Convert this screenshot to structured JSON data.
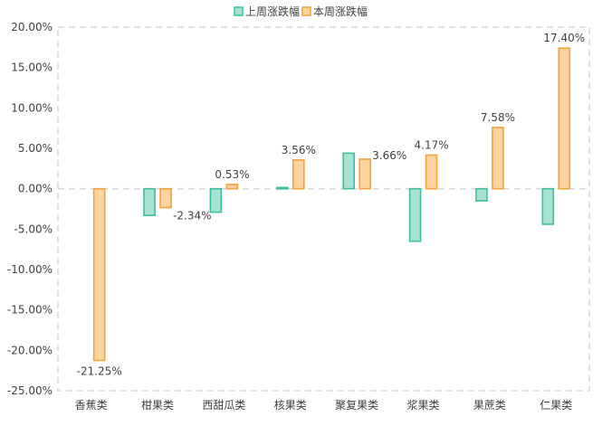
{
  "chart_data": {
    "type": "bar",
    "categories": [
      "香蕉类",
      "柑果类",
      "西甜瓜类",
      "核果类",
      "聚复果类",
      "浆果类",
      "果蔗类",
      "仁果类"
    ],
    "series": [
      {
        "name": "上周涨跌幅",
        "values": [
          null,
          -3.3,
          -2.9,
          0.15,
          4.4,
          -6.5,
          -1.5,
          -4.4
        ],
        "color": "#3dbf9f",
        "fill": "#a8e2d3",
        "show_labels": false
      },
      {
        "name": "本周涨跌幅",
        "values": [
          -21.25,
          -2.34,
          0.53,
          3.56,
          3.66,
          4.17,
          7.58,
          17.4
        ],
        "color": "#f2a33a",
        "fill": "#fdd3a0",
        "show_labels": true
      }
    ],
    "data_labels": [
      "-21.25%",
      "-2.34%",
      "0.53%",
      "3.56%",
      "3.66%",
      "4.17%",
      "7.58%",
      "17.40%"
    ],
    "y_ticks": [
      "20.00%",
      "15.00%",
      "10.00%",
      "5.00%",
      "0.00%",
      "-5.00%",
      "-10.00%",
      "-15.00%",
      "-20.00%",
      "-25.00%"
    ],
    "ylim": [
      -25,
      20
    ],
    "ytick_step": 5,
    "grid": false,
    "legend_position": "top-center",
    "axis_color": "#d9d9d9",
    "text_color": "#404040"
  }
}
